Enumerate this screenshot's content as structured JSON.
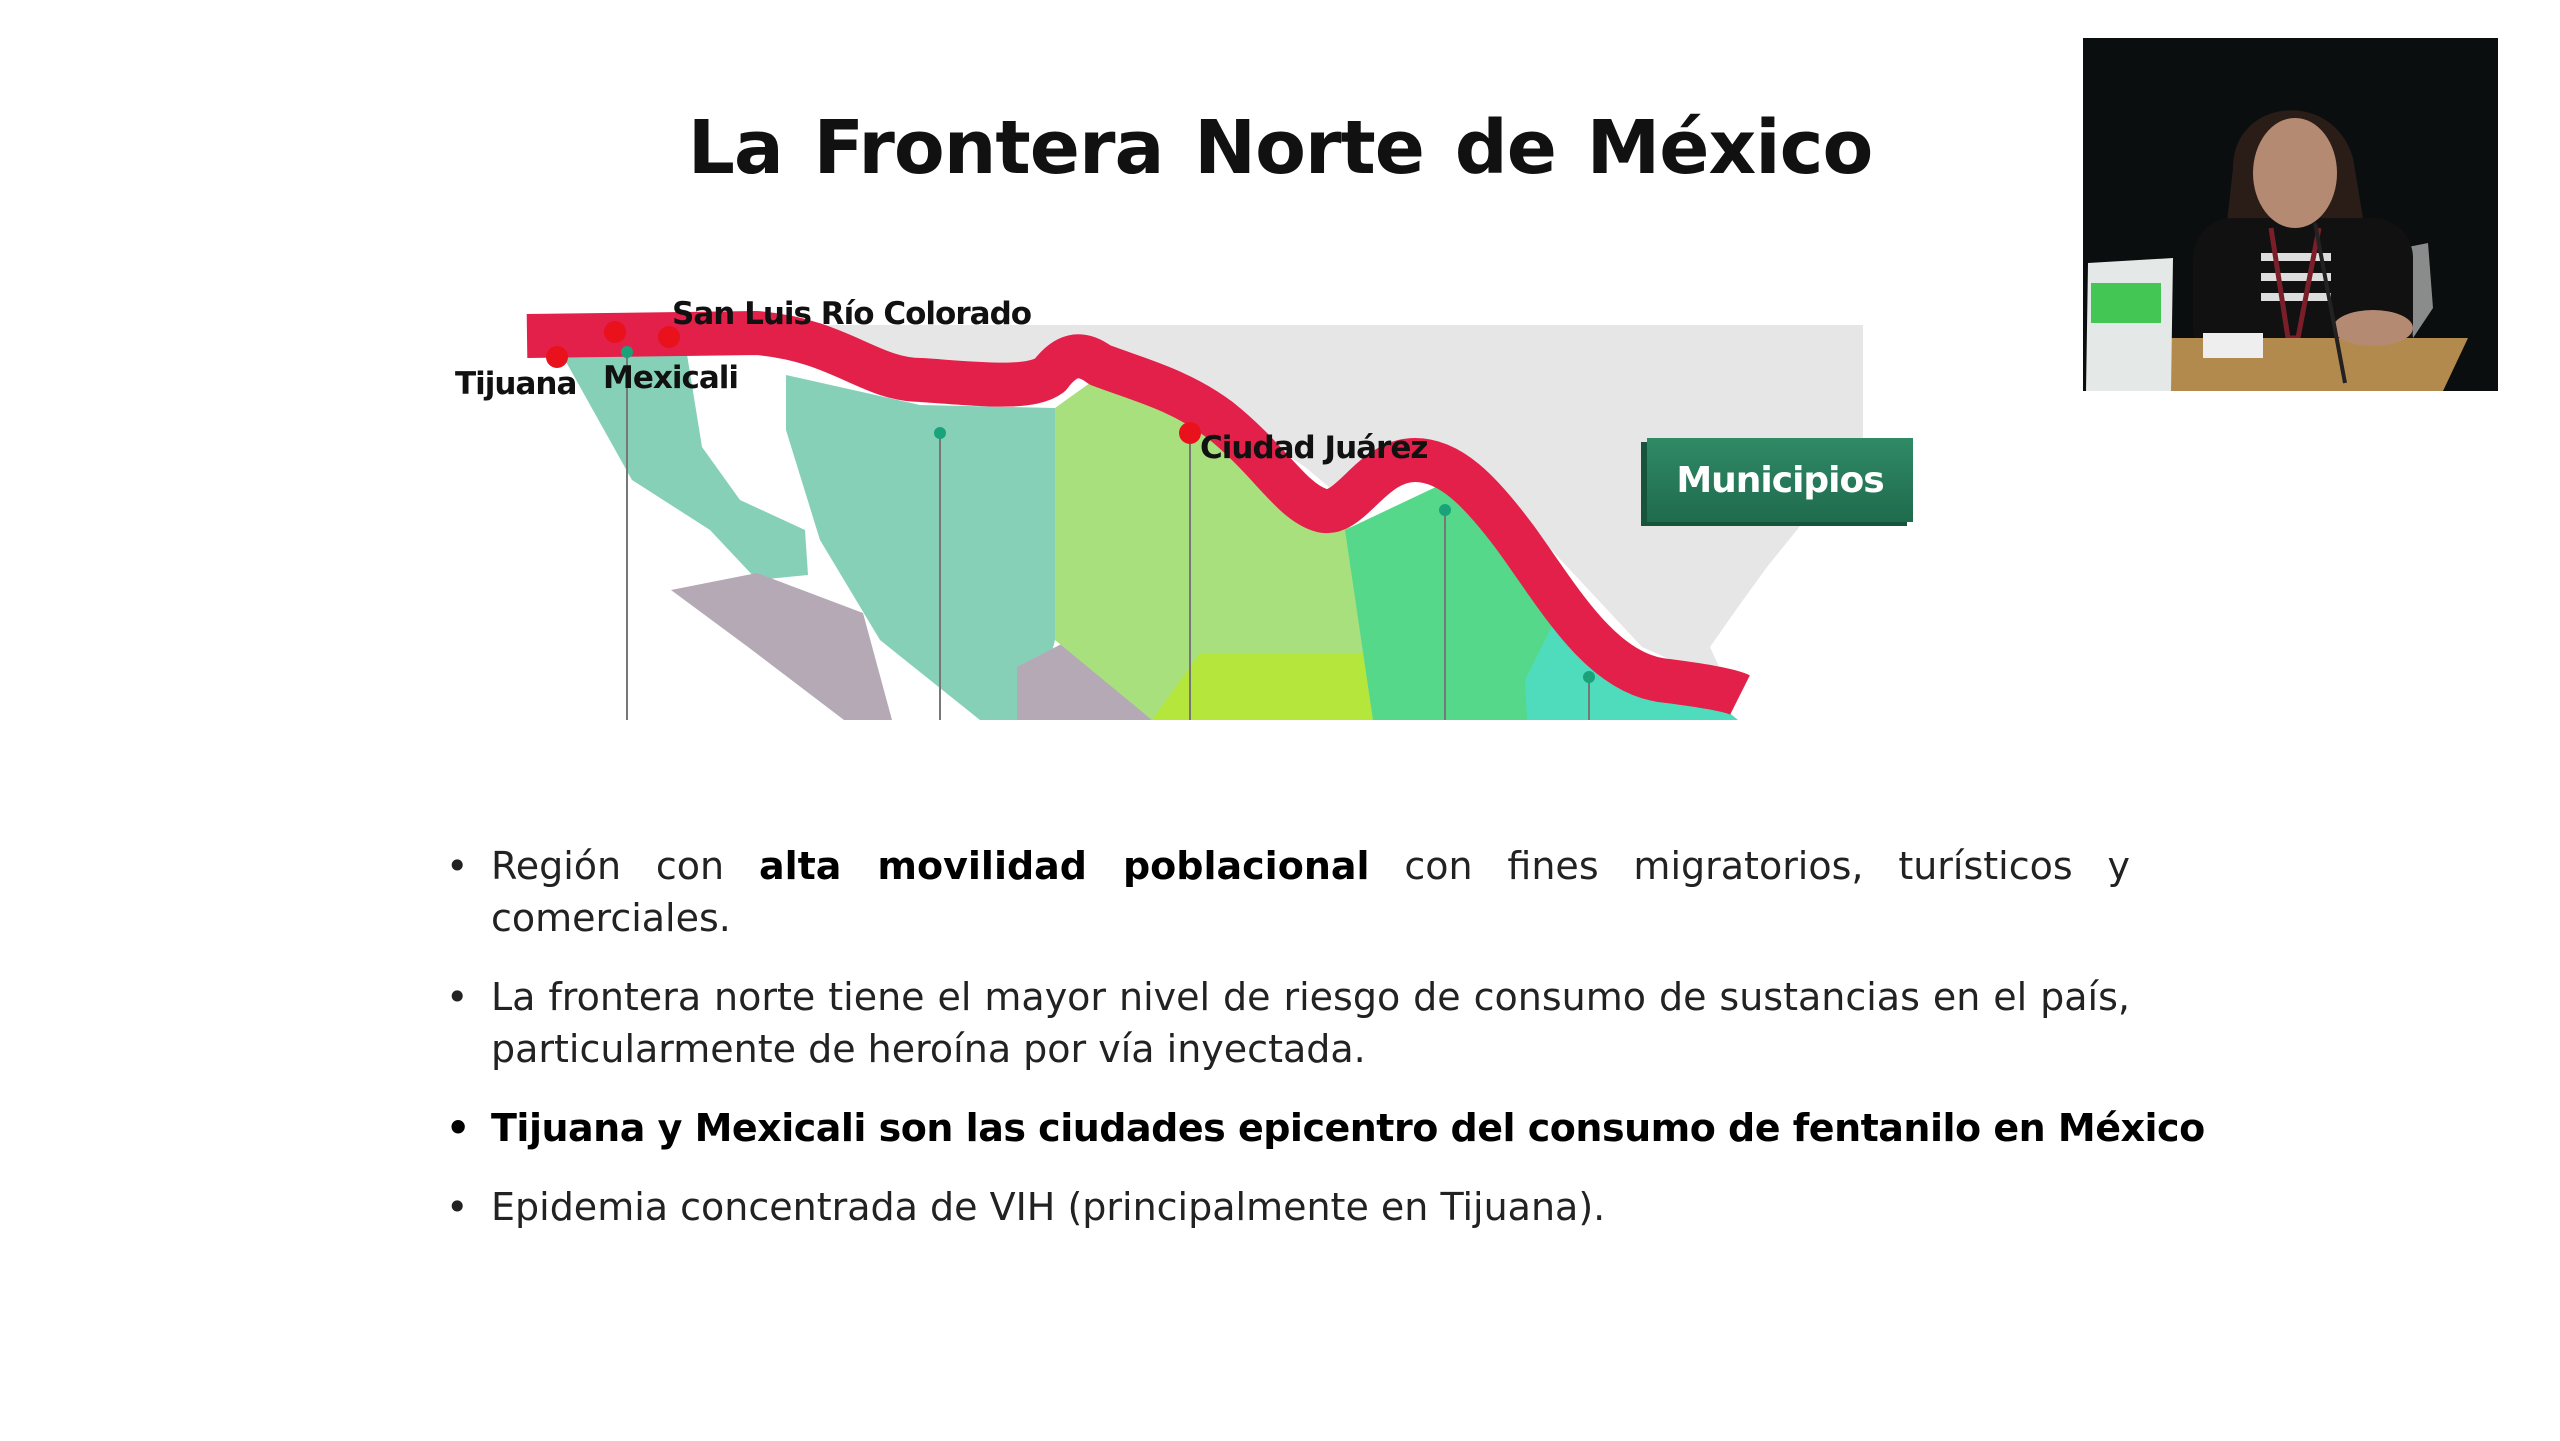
{
  "slide": {
    "title": "La Frontera  Norte de México",
    "map": {
      "cities": [
        "Tijuana",
        "Mexicali",
        "San Luis Río Colorado",
        "Ciudad Juárez"
      ],
      "badge": "Municipios",
      "colors": {
        "border_band": "#e3204a",
        "city_dot": "#e8111c",
        "badge": "#2a7a5a",
        "land_gray": "#e6e6e6"
      }
    },
    "bullets": [
      {
        "pre": "Región con ",
        "bold": "alta movilidad poblacional",
        "post": " con fines migratorios, turísticos y comerciales."
      },
      {
        "pre": "La frontera norte tiene el mayor nivel de riesgo de consumo de sustancias en el país, particularmente de heroína por vía inyectada.",
        "bold": "",
        "post": ""
      },
      {
        "pre": "",
        "bold": "Tijuana y Mexicali son las ciudades epicentro del consumo de fentanilo en México",
        "post": ""
      },
      {
        "pre": "Epidemia concentrada de VIH (principalmente en Tijuana).",
        "bold": "",
        "post": ""
      }
    ],
    "bullet_glyph": "•"
  },
  "video": {
    "description_icon": "speaker-video-feed"
  }
}
